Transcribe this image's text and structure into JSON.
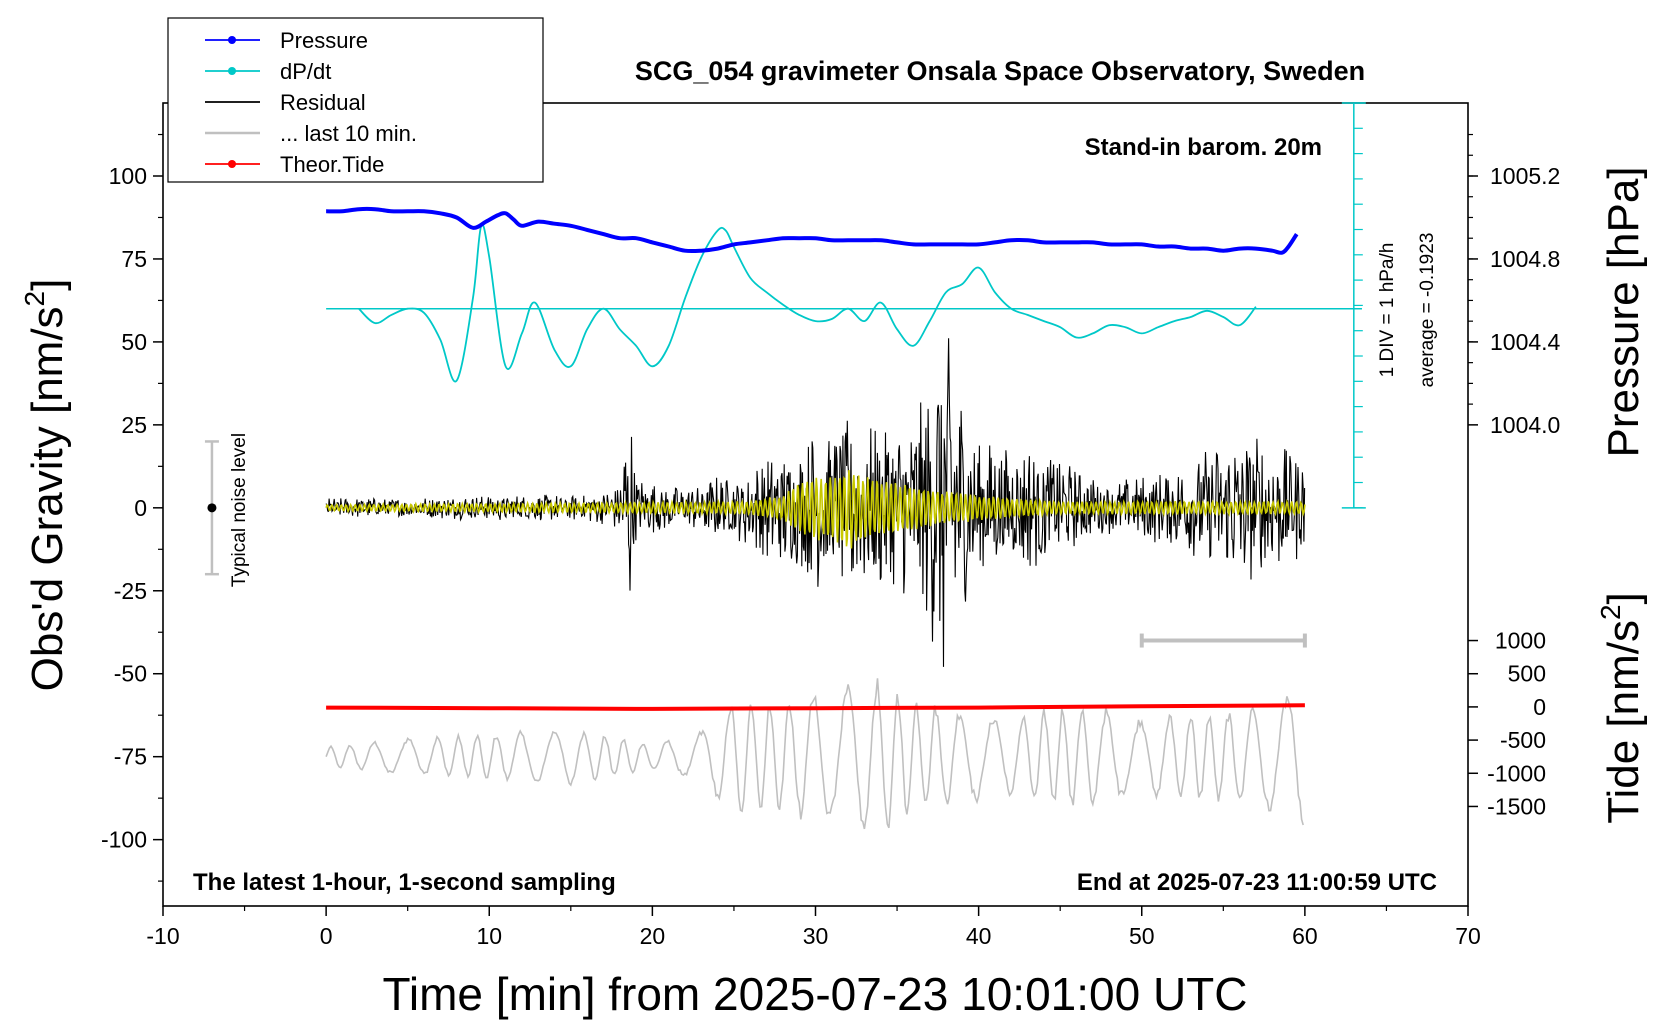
{
  "chart_data": {
    "type": "line",
    "title": "SCG_054 gravimeter Onsala Space Observatory, Sweden",
    "xlabel": "Time [min] from 2025-07-23 10:01:00 UTC",
    "ylabel_left": "Obs'd Gravity [nm/s",
    "ylabel_left_sup": "2",
    "ylabel_left_end": "]",
    "ylabel_right_top": "Pressure [hPa]",
    "ylabel_right_bottom": "Tide [nm/s",
    "ylabel_right_bottom_sup": "2",
    "ylabel_right_bottom_end": "]",
    "xlim": [
      -10,
      70
    ],
    "ylim_left": [
      -120,
      122
    ],
    "xticks": [
      "-10",
      "0",
      "10",
      "20",
      "30",
      "40",
      "50",
      "60",
      "70"
    ],
    "xtick_values": [
      -10,
      0,
      10,
      20,
      30,
      40,
      50,
      60,
      70
    ],
    "yticks_left": [
      "100",
      "75",
      "50",
      "25",
      "0",
      "-25",
      "-50",
      "-75",
      "-100"
    ],
    "ytick_left_values": [
      100,
      75,
      50,
      25,
      0,
      -25,
      -50,
      -75,
      -100
    ],
    "yticks_pressure": [
      "1005.2",
      "1004.8",
      "1004.4",
      "1004.0"
    ],
    "ytick_pressure_values": [
      1005.2,
      1004.8,
      1004.4,
      1004.0
    ],
    "yticks_tide": [
      "1000",
      "500",
      "0",
      "-500",
      "-1000",
      "-1500"
    ],
    "ytick_tide_values": [
      1000,
      500,
      0,
      -500,
      -1000,
      -1500
    ],
    "legend": {
      "placement": "top-left",
      "entries": [
        {
          "name": "Pressure",
          "color": "#0000ff",
          "marker": true
        },
        {
          "name": "dP/dt",
          "color": "#00c8c8",
          "marker": true
        },
        {
          "name": "Residual",
          "color": "#000000",
          "marker": false
        },
        {
          "name": "... last 10 min.",
          "color": "#c0c0c0",
          "marker": false
        },
        {
          "name": "Theor.Tide",
          "color": "#ff0000",
          "marker": true
        }
      ]
    },
    "annotations": {
      "barometer": "Stand-in barom. 20m",
      "noise_label": "Typical noise level",
      "noise_range": [
        -20,
        20
      ],
      "div_label": "1 DIV = 1 hPa/h",
      "average_label": "average = -0.1923",
      "bottom_left": "The latest 1-hour, 1-second sampling",
      "bottom_right": "End at 2025-07-23 11:00:59 UTC",
      "last10_bar": [
        50,
        60
      ]
    },
    "series": [
      {
        "name": "Pressure",
        "color": "#0000ff",
        "units": "hPa",
        "x": [
          0,
          1,
          2,
          3,
          4,
          5,
          6,
          7,
          8,
          9,
          9.8,
          10.5,
          11,
          11.5,
          12,
          13,
          14,
          15,
          16,
          17,
          18,
          19,
          20,
          21,
          22,
          23,
          24,
          25,
          26,
          27,
          28,
          29,
          30,
          31,
          32,
          33,
          34,
          35,
          36,
          37,
          38,
          39,
          40,
          41,
          42,
          43,
          44,
          45,
          46,
          47,
          48,
          49,
          50,
          51,
          52,
          53,
          54,
          55,
          56,
          57,
          58,
          58.6,
          59,
          59.5
        ],
        "y": [
          1005.03,
          1005.03,
          1005.04,
          1005.04,
          1005.03,
          1005.03,
          1005.03,
          1005.02,
          1005.0,
          1004.95,
          1004.98,
          1005.01,
          1005.02,
          1004.99,
          1004.96,
          1004.98,
          1004.97,
          1004.96,
          1004.94,
          1004.92,
          1004.9,
          1004.9,
          1004.88,
          1004.86,
          1004.84,
          1004.84,
          1004.85,
          1004.87,
          1004.88,
          1004.89,
          1004.9,
          1004.9,
          1004.9,
          1004.89,
          1004.89,
          1004.89,
          1004.89,
          1004.88,
          1004.87,
          1004.87,
          1004.87,
          1004.87,
          1004.87,
          1004.88,
          1004.89,
          1004.89,
          1004.88,
          1004.88,
          1004.88,
          1004.88,
          1004.87,
          1004.87,
          1004.87,
          1004.86,
          1004.86,
          1004.85,
          1004.85,
          1004.84,
          1004.85,
          1004.85,
          1004.84,
          1004.83,
          1004.86,
          1004.92
        ]
      },
      {
        "name": "dP/dt",
        "color": "#00c8c8",
        "units": "hPa/h",
        "baseline_label": "average = -0.1923",
        "x": [
          2,
          3,
          4,
          5,
          6,
          7,
          8,
          9,
          9.5,
          10,
          11,
          12,
          12.8,
          14,
          15,
          16,
          17,
          18,
          19,
          20,
          21,
          22,
          23,
          24,
          24.5,
          25,
          26,
          27,
          28,
          29,
          30,
          31,
          32,
          33,
          34,
          35,
          36,
          37,
          38,
          39,
          40,
          41,
          42,
          43,
          44,
          45,
          46,
          47,
          48,
          49,
          50,
          51,
          52,
          53,
          54,
          55,
          56,
          57
        ],
        "y": [
          0.0,
          -0.7,
          -0.3,
          0.0,
          -0.2,
          -1.5,
          -3.5,
          0.5,
          4.0,
          2.5,
          -2.8,
          -1.2,
          0.3,
          -2.0,
          -2.8,
          -1.0,
          0.0,
          -1.0,
          -1.8,
          -2.8,
          -1.8,
          0.5,
          2.5,
          3.8,
          3.8,
          3.0,
          1.5,
          0.8,
          0.2,
          -0.3,
          -0.6,
          -0.5,
          0.0,
          -0.6,
          0.3,
          -1.0,
          -1.8,
          -0.6,
          0.8,
          1.2,
          2.0,
          0.8,
          0.0,
          -0.3,
          -0.6,
          -0.9,
          -1.4,
          -1.2,
          -0.8,
          -0.9,
          -1.2,
          -0.9,
          -0.6,
          -0.4,
          -0.1,
          -0.4,
          -0.8,
          0.1
        ]
      },
      {
        "name": "Residual",
        "color": "#000000",
        "units": "nm/s2",
        "envelope_x": [
          0,
          5,
          10,
          15,
          17,
          18,
          18.6,
          19,
          20,
          22,
          24,
          25,
          26,
          28,
          29,
          30,
          31,
          32,
          33,
          34,
          35,
          36,
          37,
          38,
          38.5,
          39,
          40,
          41,
          42,
          43,
          44,
          45,
          46,
          47,
          48,
          50,
          52,
          53,
          54,
          55,
          56,
          57,
          58,
          59,
          60
        ],
        "envelope_y": [
          3,
          3,
          4,
          4,
          5,
          8,
          35,
          10,
          8,
          6,
          10,
          9,
          13,
          20,
          18,
          26,
          22,
          28,
          25,
          27,
          26,
          28,
          38,
          60,
          46,
          35,
          22,
          20,
          18,
          20,
          18,
          16,
          12,
          10,
          8,
          10,
          12,
          15,
          18,
          20,
          24,
          22,
          22,
          18,
          15
        ]
      },
      {
        "name": "Residual (smoothed)",
        "color": "#c8c800",
        "units": "nm/s2",
        "envelope_x": [
          0,
          15,
          26,
          28,
          29,
          30,
          31,
          32,
          33,
          34,
          35,
          36,
          38,
          40,
          42,
          45,
          50,
          55,
          60
        ],
        "envelope_y": [
          1,
          1.5,
          2,
          4,
          8,
          10,
          10,
          13,
          10,
          9,
          8,
          7,
          5,
          4,
          3,
          2,
          2,
          2,
          2
        ]
      },
      {
        "name": "... last 10 min.",
        "color": "#c0c0c0",
        "units": "nm/s2",
        "baseline": -75,
        "envelope_x": [
          0,
          5,
          10,
          15,
          20,
          23,
          24,
          25,
          28,
          30,
          32,
          33,
          34,
          36,
          38,
          40,
          42,
          45,
          48,
          50,
          53,
          55,
          58,
          60
        ],
        "envelope_y": [
          3,
          6,
          7,
          9,
          4,
          8,
          14,
          18,
          18,
          20,
          22,
          24,
          24,
          18,
          16,
          14,
          12,
          16,
          15,
          12,
          14,
          14,
          18,
          22
        ]
      },
      {
        "name": "Theor.Tide",
        "color": "#ff0000",
        "units": "nm/s2",
        "x": [
          0,
          10,
          20,
          30,
          40,
          50,
          60
        ],
        "y": [
          -10,
          -20,
          -30,
          -20,
          -10,
          10,
          25
        ]
      }
    ]
  }
}
